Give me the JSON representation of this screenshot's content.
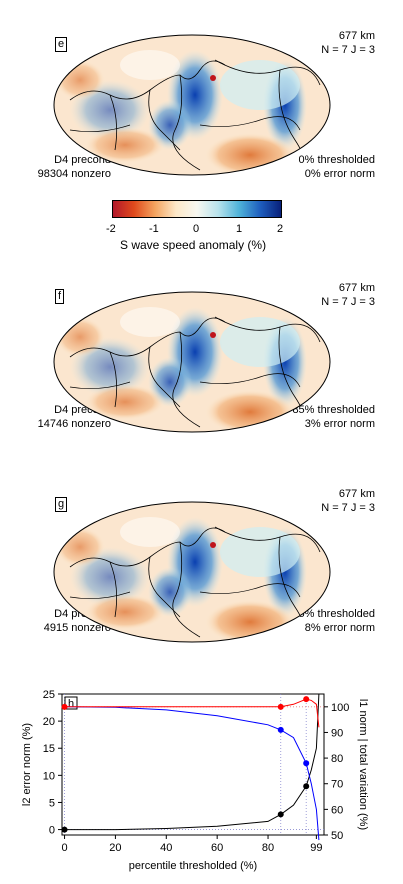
{
  "panels": [
    {
      "tag": "e",
      "depth": "677 km",
      "params": "N = 7 J = 3",
      "left_top": "D4 precond",
      "left_bottom": "98304 nonzero",
      "right_top": "0% thresholded",
      "right_bottom": "0% error norm"
    },
    {
      "tag": "f",
      "depth": "677 km",
      "params": "N = 7 J = 3",
      "left_top": "D4 precond",
      "left_bottom": "14746 nonzero",
      "right_top": "85% thresholded",
      "right_bottom": "3% error norm"
    },
    {
      "tag": "g",
      "depth": "677 km",
      "params": "N = 7 J = 3",
      "left_top": "D4 precond",
      "left_bottom": "4915 nonzero",
      "right_top": "95% thresholded",
      "right_bottom": "8% error norm"
    }
  ],
  "colorbar": {
    "ticks": [
      "-2",
      "-1",
      "0",
      "1",
      "2"
    ],
    "label": "S wave speed anomaly (%)",
    "colors": [
      "#b2182b",
      "#e04a1c",
      "#f4a460",
      "#fde8c8",
      "#f7f7f0",
      "#b9e3ec",
      "#4fb3d9",
      "#1f5fbf",
      "#08207a"
    ]
  },
  "chart_data": {
    "type": "line",
    "tag": "h",
    "xlabel": "percentile thresholded (%)",
    "ylabel_left": "l2 error norm (%)",
    "ylabel_right": "l1 norm | total variation (%)",
    "x_ticks": [
      "0",
      "20",
      "40",
      "60",
      "80",
      "99"
    ],
    "x_tick_values": [
      0,
      20,
      40,
      60,
      80,
      99
    ],
    "y_left_ticks": [
      "0",
      "5",
      "10",
      "15",
      "20",
      "25"
    ],
    "y_right_ticks": [
      "50",
      "60",
      "70",
      "80",
      "90",
      "100"
    ],
    "xlim": [
      -1,
      102
    ],
    "ylim_left": [
      -1,
      25
    ],
    "ylim_right": [
      50,
      105
    ],
    "series": [
      {
        "color": "#000000",
        "axis": "left",
        "x": [
          0,
          20,
          40,
          60,
          80,
          85,
          90,
          95,
          97,
          99,
          100
        ],
        "y": [
          0,
          0,
          0.2,
          0.6,
          1.5,
          2.8,
          4.5,
          8,
          11,
          15,
          25
        ],
        "markers_x": [
          0,
          85,
          95
        ],
        "markers_y": [
          0,
          2.8,
          8
        ]
      },
      {
        "color": "#0000ff",
        "axis": "right",
        "x": [
          0,
          20,
          40,
          60,
          80,
          85,
          90,
          95,
          97,
          99,
          100
        ],
        "y": [
          100,
          99.8,
          98.8,
          96.5,
          93,
          91,
          88,
          78,
          70,
          60,
          48
        ],
        "markers_x": [
          85,
          95
        ],
        "markers_y": [
          91,
          78
        ]
      },
      {
        "color": "#ff0000",
        "axis": "right",
        "x": [
          0,
          20,
          40,
          60,
          80,
          85,
          90,
          95,
          97,
          99,
          100
        ],
        "y": [
          100,
          100,
          100,
          100,
          100,
          100,
          101,
          103,
          102.5,
          101,
          92
        ],
        "markers_x": [
          0,
          85,
          95
        ],
        "markers_y": [
          100,
          100,
          103
        ]
      }
    ]
  }
}
